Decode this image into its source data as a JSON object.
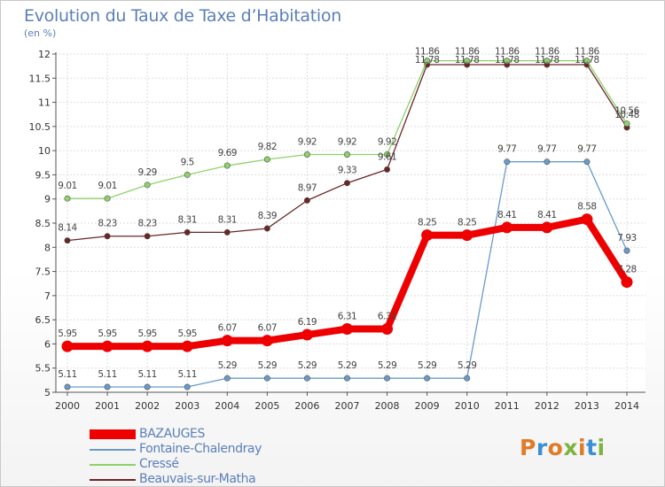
{
  "title": "Evolution du Taux de Taxe d’Habitation",
  "unit": "(en %)",
  "logo": {
    "text": "Proxiti",
    "colors": [
      "#e07b26",
      "#3b8fd4",
      "#e07b26",
      "#7cb342",
      "#e07b26",
      "#3b8fd4",
      "#7cb342"
    ]
  },
  "chart_data": {
    "type": "line",
    "title": "Evolution du Taux de Taxe d’Habitation",
    "ylabel": "(en %)",
    "xlabel": "",
    "x": [
      "2000",
      "2001",
      "2002",
      "2003",
      "2004",
      "2005",
      "2006",
      "2007",
      "2008",
      "2009",
      "2010",
      "2011",
      "2012",
      "2013",
      "2014"
    ],
    "ylim": [
      5,
      12
    ],
    "yticks": [
      "5",
      "5.5",
      "6",
      "6.5",
      "7",
      "7.5",
      "8",
      "8.5",
      "9",
      "9.5",
      "10",
      "10.5",
      "11",
      "11.5",
      "12"
    ],
    "grid": true,
    "legend_position": "bottom-left",
    "series": [
      {
        "name": "BAZAUGES",
        "color": "#ee0000",
        "values": [
          5.95,
          5.95,
          5.95,
          5.95,
          6.07,
          6.07,
          6.19,
          6.31,
          6.31,
          8.25,
          8.25,
          8.41,
          8.41,
          8.58,
          7.28
        ],
        "labels": [
          "5.95",
          "5.95",
          "5.95",
          "5.95",
          "6.07",
          "6.07",
          "6.19",
          "6.31",
          "6.31",
          "8.25",
          "8.25",
          "8.41",
          "8.41",
          "8.58",
          "7.28"
        ]
      },
      {
        "name": "Fontaine-Chalendray",
        "color": "#6a9bc8",
        "values": [
          5.11,
          5.11,
          5.11,
          5.11,
          5.29,
          5.29,
          5.29,
          5.29,
          5.29,
          5.29,
          5.29,
          9.77,
          9.77,
          9.77,
          7.93
        ],
        "labels": [
          "5.11",
          "5.11",
          "5.11",
          "5.11",
          "5.29",
          "5.29",
          "5.29",
          "5.29",
          "5.29",
          "5.29",
          "5.29",
          "9.77",
          "9.77",
          "9.77",
          "7.93"
        ]
      },
      {
        "name": "Cressé",
        "color": "#8fd16a",
        "values": [
          9.01,
          9.01,
          9.29,
          9.5,
          9.69,
          9.82,
          9.92,
          9.92,
          9.92,
          11.86,
          11.86,
          11.86,
          11.86,
          11.86,
          10.56
        ],
        "labels": [
          "9.01",
          "9.01",
          "9.29",
          "9.5",
          "9.69",
          "9.82",
          "9.92",
          "9.92",
          "9.92",
          "11.86",
          "11.86",
          "11.86",
          "11.86",
          "11.86",
          "10.56"
        ]
      },
      {
        "name": "Beauvais-sur-Matha",
        "color": "#6b2525",
        "values": [
          8.14,
          8.23,
          8.23,
          8.31,
          8.31,
          8.39,
          8.97,
          9.33,
          9.61,
          11.78,
          11.78,
          11.78,
          11.78,
          11.78,
          10.48
        ],
        "labels": [
          "8.14",
          "8.23",
          "8.23",
          "8.31",
          "8.31",
          "8.39",
          "8.97",
          "9.33",
          "9.61",
          "11.78",
          "11.78",
          "11.78",
          "11.78",
          "11.78",
          "10.48"
        ]
      }
    ]
  }
}
